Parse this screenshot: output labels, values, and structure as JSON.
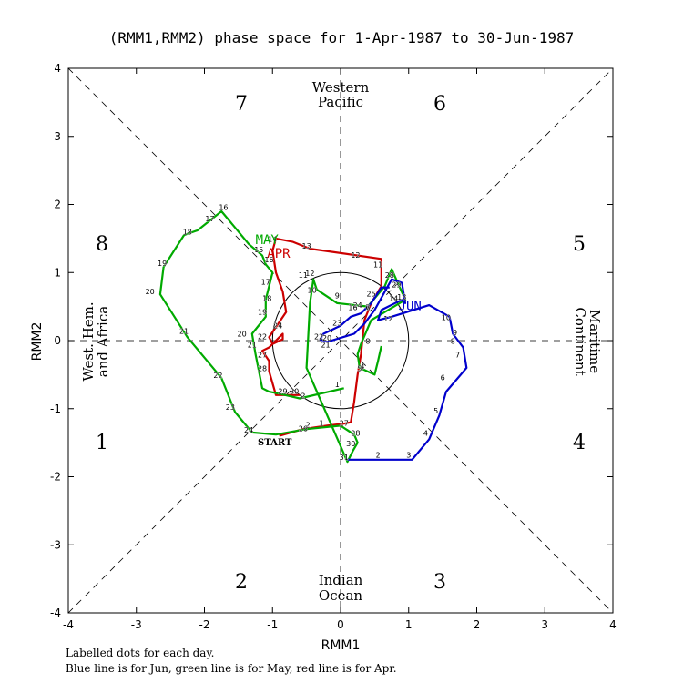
{
  "chart_data": {
    "type": "line",
    "title": "(RMM1,RMM2) phase space for  1-Apr-1987 to 30-Jun-1987",
    "xlabel": "RMM1",
    "ylabel": "RMM2",
    "xlim": [
      -4,
      4
    ],
    "ylim": [
      -4,
      4
    ],
    "x_ticks": [
      "-4",
      "-3",
      "-2",
      "-1",
      "0",
      "1",
      "2",
      "3",
      "4"
    ],
    "y_ticks": [
      "-4",
      "-3",
      "-2",
      "-1",
      "0",
      "1",
      "2",
      "3",
      "4"
    ],
    "phase_numbers": [
      "1",
      "2",
      "3",
      "4",
      "5",
      "6",
      "7",
      "8"
    ],
    "regions": {
      "top_line1": "Western",
      "top_line2": "Pacific",
      "bottom_line1": "Indian",
      "bottom_line2": "Ocean",
      "left_line1": "West. Hem.",
      "left_line2": "and Africa",
      "right_line1": "Maritime",
      "right_line2": "Continent"
    },
    "start_label": "START",
    "footnote_line1": "Labelled dots for each day.",
    "footnote_line2": "Blue line is for Jun, green line is for May, red line is for Apr.",
    "series": [
      {
        "name": "APR",
        "color": "#cc0000",
        "points": [
          [
            -0.9,
            -1.4
          ],
          [
            -0.55,
            -1.3
          ],
          [
            -0.2,
            -1.25
          ],
          [
            0.05,
            -1.22
          ],
          [
            0.15,
            -1.2
          ],
          [
            0.2,
            -0.9
          ],
          [
            0.25,
            -0.5
          ],
          [
            0.3,
            -0.2
          ],
          [
            0.35,
            0.3
          ],
          [
            0.45,
            0.55
          ],
          [
            0.6,
            0.8
          ],
          [
            0.6,
            1.2
          ],
          [
            -0.45,
            1.35
          ],
          [
            -0.7,
            1.45
          ],
          [
            -0.95,
            1.5
          ],
          [
            -1.0,
            1.32
          ],
          [
            -0.95,
            1.0
          ],
          [
            -0.85,
            0.72
          ],
          [
            -0.8,
            0.42
          ],
          [
            -1.05,
            0.05
          ],
          [
            -1.0,
            -0.05
          ],
          [
            -0.85,
            0.02
          ],
          [
            -0.85,
            0.1
          ],
          [
            -0.9,
            0.05
          ],
          [
            -1.05,
            -0.1
          ],
          [
            -1.15,
            -0.15
          ],
          [
            -1.05,
            -0.3
          ],
          [
            -1.05,
            -0.45
          ],
          [
            -0.95,
            -0.8
          ],
          [
            -0.6,
            -0.8
          ]
        ]
      },
      {
        "name": "MAY",
        "color": "#00aa00",
        "points": [
          [
            0.05,
            -0.7
          ],
          [
            -0.6,
            -0.85
          ],
          [
            -0.9,
            -0.78
          ],
          [
            -1.05,
            -0.75
          ],
          [
            -1.15,
            -0.7
          ],
          [
            -1.25,
            -0.2
          ],
          [
            -1.3,
            0.1
          ],
          [
            -1.1,
            0.35
          ],
          [
            -1.1,
            0.6
          ],
          [
            -1.05,
            0.8
          ],
          [
            -1.0,
            1.0
          ],
          [
            -1.1,
            1.12
          ],
          [
            -1.15,
            1.25
          ],
          [
            -1.35,
            1.42
          ],
          [
            -1.6,
            1.72
          ],
          [
            -1.75,
            1.9
          ],
          [
            -2.1,
            1.62
          ],
          [
            -2.3,
            1.55
          ],
          [
            -2.6,
            1.08
          ],
          [
            -2.65,
            0.68
          ],
          [
            -2.25,
            0.05
          ],
          [
            -1.75,
            -0.55
          ],
          [
            -1.55,
            -1.05
          ],
          [
            -1.3,
            -1.35
          ],
          [
            -0.95,
            -1.38
          ],
          [
            -0.5,
            -1.3
          ],
          [
            0.0,
            -1.25
          ],
          [
            0.2,
            -1.38
          ],
          [
            0.25,
            -1.5
          ],
          [
            0.18,
            -1.62
          ],
          [
            0.1,
            -1.78
          ],
          [
            -0.5,
            -0.4
          ],
          [
            -0.45,
            0.55
          ],
          [
            -0.4,
            0.9
          ],
          [
            -0.35,
            0.75
          ],
          [
            -0.05,
            0.55
          ],
          [
            0.4,
            0.5
          ],
          [
            0.65,
            0.8
          ],
          [
            0.75,
            1.05
          ],
          [
            0.95,
            0.6
          ],
          [
            0.7,
            0.45
          ],
          [
            0.45,
            0.3
          ],
          [
            0.3,
            -0.05
          ],
          [
            0.25,
            -0.2
          ],
          [
            0.28,
            -0.4
          ],
          [
            0.5,
            -0.5
          ],
          [
            0.55,
            -0.3
          ],
          [
            0.6,
            -0.08
          ]
        ]
      },
      {
        "name": "JUN",
        "color": "#0000cc",
        "points": [
          [
            0.1,
            -1.75
          ],
          [
            0.7,
            -1.75
          ],
          [
            1.05,
            -1.75
          ],
          [
            1.3,
            -1.45
          ],
          [
            1.45,
            -1.1
          ],
          [
            1.55,
            -0.75
          ],
          [
            1.85,
            -0.4
          ],
          [
            1.8,
            -0.1
          ],
          [
            1.65,
            0.1
          ],
          [
            1.6,
            0.35
          ],
          [
            1.3,
            0.52
          ],
          [
            0.75,
            0.35
          ],
          [
            0.55,
            0.3
          ],
          [
            0.6,
            0.45
          ],
          [
            0.9,
            0.6
          ],
          [
            0.95,
            0.55
          ],
          [
            0.9,
            0.85
          ],
          [
            0.75,
            0.9
          ],
          [
            0.5,
            0.45
          ],
          [
            0.35,
            0.25
          ],
          [
            0.2,
            0.1
          ],
          [
            -0.2,
            -0.02
          ],
          [
            -0.3,
            0.02
          ],
          [
            -0.25,
            0.1
          ],
          [
            0.0,
            0.22
          ],
          [
            0.15,
            0.35
          ],
          [
            0.3,
            0.4
          ],
          [
            0.45,
            0.55
          ],
          [
            0.6,
            0.78
          ],
          [
            0.72,
            0.78
          ]
        ]
      }
    ],
    "month_labels": [
      {
        "text": "APR",
        "color": "#cc0000",
        "x": -1.08,
        "y": 1.22
      },
      {
        "text": "MAY",
        "color": "#00aa00",
        "x": -1.25,
        "y": 1.42
      },
      {
        "text": "JUN",
        "color": "#0000cc",
        "x": 0.85,
        "y": 0.45
      }
    ],
    "day_labels": [
      [
        "1",
        -0.28,
        -1.25,
        "#cc0000"
      ],
      [
        "2",
        -0.48,
        -1.28,
        "#cc0000"
      ],
      [
        "4",
        0.32,
        -0.42,
        "#cc0000"
      ],
      [
        "6",
        0.4,
        0.45,
        "#cc0000"
      ],
      [
        "11",
        0.55,
        1.08,
        "#cc0000"
      ],
      [
        "12",
        0.22,
        1.22,
        "#cc0000"
      ],
      [
        "13",
        -0.5,
        1.35,
        "#cc0000"
      ],
      [
        "14",
        -1.0,
        1.45,
        "#cc0000"
      ],
      [
        "16",
        -1.05,
        1.15,
        "#cc0000"
      ],
      [
        "17",
        -1.1,
        0.82,
        "#cc0000"
      ],
      [
        "18",
        -1.08,
        0.58,
        "#cc0000"
      ],
      [
        "19",
        -1.15,
        0.38,
        "#cc0000"
      ],
      [
        "20",
        -1.45,
        0.06,
        "#cc0000"
      ],
      [
        "21",
        -1.3,
        -0.1,
        "#cc0000"
      ],
      [
        "22",
        -1.15,
        0.02,
        "#cc0000"
      ],
      [
        "24",
        -0.92,
        0.18,
        "#cc0000"
      ],
      [
        "27",
        -1.15,
        -0.25,
        "#cc0000"
      ],
      [
        "28",
        -1.15,
        -0.45,
        "#cc0000"
      ],
      [
        "29",
        -0.85,
        -0.78,
        "#cc0000"
      ],
      [
        "30",
        -0.68,
        -0.78,
        "#cc0000"
      ],
      [
        "1",
        -0.05,
        -0.68,
        "#00aa00"
      ],
      [
        "2",
        -0.55,
        -0.85,
        "#00aa00"
      ],
      [
        "15",
        -1.2,
        1.3,
        "#00aa00"
      ],
      [
        "16",
        -1.72,
        1.92,
        "#00aa00"
      ],
      [
        "17",
        -1.92,
        1.75,
        "#00aa00"
      ],
      [
        "18",
        -2.25,
        1.56,
        "#00aa00"
      ],
      [
        "19",
        -2.62,
        1.1,
        "#00aa00"
      ],
      [
        "20",
        -2.8,
        0.68,
        "#00aa00"
      ],
      [
        "21",
        -2.3,
        0.1,
        "#00aa00"
      ],
      [
        "22",
        -1.8,
        -0.55,
        "#00aa00"
      ],
      [
        "23",
        -1.62,
        -1.02,
        "#00aa00"
      ],
      [
        "24",
        -1.35,
        -1.35,
        "#00aa00"
      ],
      [
        "26",
        -0.55,
        -1.33,
        "#00aa00"
      ],
      [
        "27",
        0.05,
        -1.25,
        "#00aa00"
      ],
      [
        "28",
        0.22,
        -1.4,
        "#00aa00"
      ],
      [
        "30",
        0.15,
        -1.55,
        "#00aa00"
      ],
      [
        "31",
        0.05,
        -1.75,
        "#00aa00"
      ],
      [
        "10",
        -0.42,
        0.7,
        "#00aa00"
      ],
      [
        "11",
        -0.55,
        0.92,
        "#00aa00"
      ],
      [
        "12",
        -0.45,
        0.95,
        "#00aa00"
      ],
      [
        "9",
        -0.05,
        0.62,
        "#00aa00"
      ],
      [
        "7",
        0.4,
        0.45,
        "#00aa00"
      ],
      [
        "5",
        0.28,
        -0.45,
        "#00aa00"
      ],
      [
        "23",
        -0.05,
        0.22,
        "#00aa00"
      ],
      [
        "24",
        0.25,
        0.48,
        "#00aa00"
      ],
      [
        "25",
        0.45,
        0.65,
        "#00aa00"
      ],
      [
        "2",
        0.55,
        -1.72,
        "#0000cc"
      ],
      [
        "3",
        1.0,
        -1.72,
        "#0000cc"
      ],
      [
        "4",
        1.25,
        -1.4,
        "#0000cc"
      ],
      [
        "5",
        1.4,
        -1.07,
        "#0000cc"
      ],
      [
        "6",
        1.5,
        -0.58,
        "#0000cc"
      ],
      [
        "7",
        1.72,
        -0.25,
        "#0000cc"
      ],
      [
        "8",
        1.65,
        -0.05,
        "#0000cc"
      ],
      [
        "9",
        1.68,
        0.08,
        "#0000cc"
      ],
      [
        "10",
        1.55,
        0.3,
        "#0000cc"
      ],
      [
        "12",
        0.7,
        0.28,
        "#0000cc"
      ],
      [
        "13",
        0.9,
        0.6,
        "#0000cc"
      ],
      [
        "14",
        0.78,
        0.58,
        "#0000cc"
      ],
      [
        "16",
        0.18,
        0.45,
        "#0000cc"
      ],
      [
        "20",
        -0.2,
        0.0,
        "#0000cc"
      ],
      [
        "21",
        -0.22,
        -0.1,
        "#0000cc"
      ],
      [
        "22",
        -0.32,
        0.02,
        "#0000cc"
      ],
      [
        "28",
        0.72,
        0.92,
        "#0000cc"
      ],
      [
        "29",
        0.82,
        0.78,
        "#0000cc"
      ],
      [
        "8",
        0.4,
        -0.05,
        "#0000cc"
      ]
    ]
  }
}
